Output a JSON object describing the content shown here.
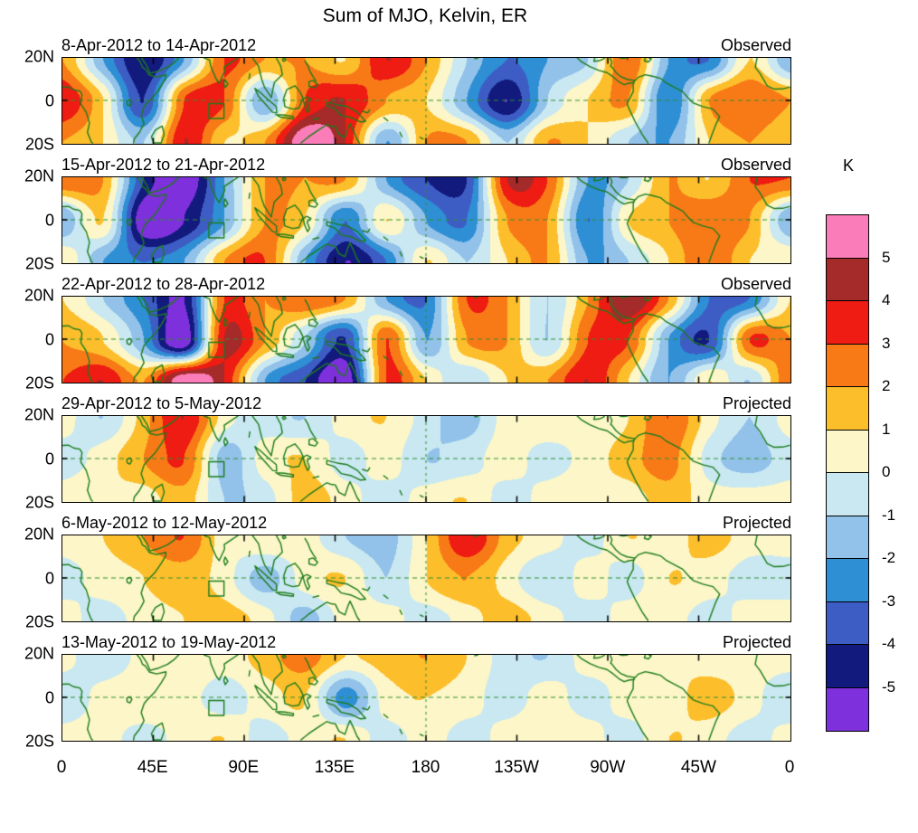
{
  "title": "Sum of MJO, Kelvin, ER",
  "axes": {
    "lat_labels": [
      "20N",
      "0",
      "20S"
    ],
    "lon_labels": [
      "0",
      "45E",
      "90E",
      "135E",
      "180",
      "135W",
      "90W",
      "45W",
      "0"
    ],
    "lon_range": [
      0,
      360
    ],
    "lat_range": [
      -20,
      20
    ]
  },
  "colorbar": {
    "unit": "K",
    "tick_labels": [
      "5",
      "4",
      "3",
      "2",
      "1",
      "0",
      "-1",
      "-2",
      "-3",
      "-4",
      "-5"
    ],
    "colors_top_to_bottom": [
      "#FA7DB9",
      "#A52A2A",
      "#EE1C12",
      "#F87A17",
      "#FDBE2C",
      "#FCF6C8",
      "#C9E8F2",
      "#92C1E9",
      "#2E8FD5",
      "#3D5DC4",
      "#131A7E",
      "#7D30DC"
    ]
  },
  "map": {
    "coastline_color": "#1c7c1c",
    "gridline_color": "#2f8f2f",
    "dashed_equator": 0,
    "dashed_meridian": 180,
    "marker_box": {
      "lon": [
        72.5,
        80
      ],
      "lat": [
        -8.5,
        -1.5
      ]
    },
    "coastlines": [
      [
        0,
        6.2,
        3,
        6.3,
        5.5,
        5,
        8.6,
        4.4,
        9.7,
        2.8,
        9.1,
        -1.6,
        11.8,
        -5.6,
        13.4,
        -10.6,
        12.4,
        -15,
        14.3,
        -19.6,
        14.9,
        -20
      ],
      [
        343.9,
        20,
        343,
        15.6,
        345.4,
        12.6,
        348.9,
        6.9,
        352.4,
        5.3,
        356.6,
        5.4,
        360,
        6.2
      ],
      [
        37,
        20,
        38.6,
        18.1,
        39.6,
        15.6,
        41.1,
        14.7,
        43.1,
        11.9,
        46.6,
        11,
        51.3,
        12,
        51.1,
        10.4,
        49,
        7,
        46,
        2.8,
        41.6,
        -1.6,
        40.4,
        -3.1,
        39,
        -7.1,
        40.4,
        -11,
        38.1,
        -15.1,
        35.6,
        -18.1,
        35.2,
        -20
      ],
      [
        39.2,
        20,
        41.9,
        16.1,
        43.4,
        12.7,
        47.1,
        13.6,
        52.1,
        15.6,
        55.1,
        17.6,
        57.6,
        20
      ],
      [
        49.4,
        -12.1,
        50.4,
        -15.9,
        48.9,
        -20,
        45.1,
        -20,
        44.1,
        -17.1,
        46.1,
        -13.9,
        49.4,
        -12.1
      ],
      [
        70.1,
        20,
        72.9,
        19,
        73.6,
        15.6,
        76.1,
        10.1,
        77.6,
        8.1,
        80.3,
        13.6,
        80.1,
        15.7,
        82.3,
        17.1,
        86.9,
        20
      ],
      [
        80.6,
        9.8,
        81.9,
        7.6,
        80.6,
        6,
        79.9,
        8,
        80.6,
        9.8
      ],
      [
        94.1,
        20,
        97.1,
        16.1,
        98.6,
        10.1,
        100.1,
        6.1,
        103.4,
        1.4
      ],
      [
        103.4,
        1.4,
        104.9,
        8.4,
        108.9,
        12.1,
        108.1,
        16.1,
        105.9,
        20
      ],
      [
        95.3,
        5.6,
        98.1,
        3.6,
        102.1,
        0.1,
        105.9,
        -2.9,
        106.1,
        -5.9,
        104.1,
        -5.6,
        100.9,
        -2.1,
        97.1,
        1.9,
        95.3,
        5.6
      ],
      [
        105.6,
        -6.7,
        110.1,
        -6.9,
        114.4,
        -7.6,
        114.3,
        -8.6,
        108.1,
        -7.9,
        105.6,
        -6.7
      ],
      [
        109.6,
        1.1,
        110.1,
        -2.9,
        114.1,
        -4.1,
        117.1,
        -3.6,
        119.1,
        1.1,
        117.6,
        4.1,
        115.1,
        6.9,
        111.1,
        5.1,
        109.6,
        1.1
      ],
      [
        119.1,
        0.6,
        120.1,
        -2.9,
        121.4,
        -5.6,
        122.4,
        -4.1,
        121.1,
        -1.1,
        123.1,
        0.6,
        120.9,
        1.6,
        119.1,
        0.6
      ],
      [
        130.9,
        -0.9,
        136.1,
        -2.1,
        141.1,
        -2.9,
        146.1,
        -5.6,
        150.1,
        -9.9,
        147.4,
        -10.1,
        143.1,
        -8.1,
        138.1,
        -7.1,
        134.9,
        -3.9,
        130.9,
        -2.6,
        130.9,
        -0.9
      ],
      [
        120.1,
        18.6,
        121.6,
        16.1,
        122.6,
        13.6,
        124.1,
        11.1,
        125.6,
        9.1
      ],
      [
        122.1,
        8.9,
        124.1,
        9.4,
        126.4,
        7.4,
        125.1,
        5.9,
        122.1,
        6.6,
        122.1,
        8.9
      ],
      [
        118.1,
        -20,
        121.9,
        -17.1,
        126.9,
        -13.9,
        130.9,
        -11.4,
        132.9,
        -12.1,
        135.1,
        -12.4,
        136.9,
        -15.9,
        139.9,
        -17.4,
        141.4,
        -13.1,
        142.4,
        -10.9,
        144.1,
        -14.4,
        145.9,
        -18.4,
        147.1,
        -20
      ],
      [
        289.9,
        -20,
        287.1,
        -16.1,
        283.6,
        -10.1,
        280.6,
        -4.1,
        279.6,
        -1.6,
        280.9,
        1.1,
        282.6,
        4.1,
        282.6,
        7.6,
        283.1,
        8.9
      ],
      [
        320.1,
        -20,
        321.6,
        -16.1,
        323.6,
        -11.1,
        325.4,
        -7.6,
        322.1,
        -4.1,
        317.1,
        -2.9,
        312.1,
        -1.1,
        309.6,
        1.4,
        307.1,
        4.1,
        303.1,
        6.1,
        299.1,
        8.1,
        296.1,
        10.4,
        292.1,
        11.4,
        288.6,
        12.1,
        285.1,
        10.9,
        283.1,
        8.9
      ],
      [
        254.9,
        20,
        257.1,
        18.1,
        261.1,
        15.9,
        265.6,
        14.1,
        269.6,
        13.1,
        272.6,
        11.1,
        275.6,
        8.7,
        278.1,
        7.4,
        280.4,
        8.1,
        282.9,
        8.4
      ],
      [
        283.1,
        9.4,
        279.6,
        9.9,
        276.6,
        11.1,
        274.1,
        13.1,
        272.1,
        15.6,
        271.4,
        16.1,
        272.1,
        17.9,
        271.1,
        20
      ],
      [
        263.6,
        20,
        263.1,
        18.4,
        265.6,
        18.6,
        267.7,
        19.4,
        268.4,
        20
      ],
      [
        288.6,
        20,
        288.1,
        18.6,
        290.1,
        18.1,
        291.6,
        19.6,
        290.3,
        20
      ],
      [
        275.9,
        20,
        277.6,
        19.8,
        279.9,
        20
      ],
      [
        31.9,
        -0.4,
        33.4,
        0.3,
        34.4,
        -0.9,
        33.4,
        -2.6,
        32.1,
        -2.1,
        31.9,
        -0.4
      ],
      [
        159.1,
        -8.1,
        161.1,
        -9.6
      ],
      [
        167.1,
        -15.1,
        168.1,
        -17.1
      ],
      [
        177.1,
        -17.4,
        178.6,
        -18.1
      ],
      [
        108.9,
        19.4,
        110.1,
        19.9,
        110.6,
        18.9,
        109.4,
        18.4,
        108.9,
        19.4
      ],
      [
        92.8,
        12.6,
        92.4,
        10.1
      ],
      [
        148.6,
        -5.1,
        151.1,
        -5.9,
        152.1,
        -4.4
      ],
      [
        124.1,
        -9.1,
        126.9,
        -8.4
      ],
      [
        204.1,
        19.6,
        205.6,
        19.9
      ]
    ]
  },
  "chart_data": {
    "type": "heatmap",
    "title": "Sum of MJO, Kelvin, ER",
    "units": "K",
    "levels": [
      -5,
      -4,
      -3,
      -2,
      -1,
      0,
      1,
      2,
      3,
      4,
      5
    ],
    "grid": {
      "lon_start": 0,
      "lon_step": 20,
      "lon_count": 19,
      "lat_rows": [
        20,
        0,
        -20
      ]
    },
    "panels": [
      {
        "date_range": "8-Apr-2012 to 14-Apr-2012",
        "status": "Observed",
        "values": {
          "n": [
            2,
            -2,
            -5,
            -2,
            3,
            2,
            2,
            1,
            4,
            2,
            -1,
            -3,
            -2,
            -1,
            3,
            -2,
            -3,
            1,
            -2
          ],
          "e": [
            4,
            1,
            -4,
            3,
            3,
            -2,
            3,
            4,
            2,
            1,
            -2,
            -5,
            -1,
            1,
            2,
            -3,
            2,
            3,
            2
          ],
          "s": [
            2,
            1,
            -1,
            4,
            1,
            2,
            6,
            4,
            -2,
            2,
            2,
            -1,
            2,
            1,
            -1,
            -2,
            1,
            2,
            1
          ]
        }
      },
      {
        "date_range": "15-Apr-2012 to 21-Apr-2012",
        "status": "Observed",
        "values": {
          "n": [
            3,
            2,
            -4,
            -6,
            -2,
            2,
            2,
            2,
            -2,
            -4,
            -4,
            4,
            3,
            -2,
            -1,
            2,
            1,
            3,
            3
          ],
          "e": [
            -2,
            1,
            -6,
            -5,
            -2,
            2,
            1,
            -3,
            1,
            -2,
            -3,
            2,
            2,
            -3,
            1,
            2,
            3,
            2,
            -2
          ],
          "s": [
            1,
            -2,
            -3,
            -2,
            2,
            3,
            -2,
            -5,
            -3,
            1,
            -1,
            1,
            2,
            -2,
            -1,
            1,
            3,
            1,
            1
          ]
        }
      },
      {
        "date_range": "22-Apr-2012 to 28-Apr-2012",
        "status": "Observed",
        "values": {
          "n": [
            1,
            -1,
            -3,
            -5,
            3,
            2,
            3,
            2,
            -2,
            -3,
            3,
            2,
            -1,
            2,
            5,
            2,
            -3,
            -3,
            1
          ],
          "e": [
            2,
            1,
            -2,
            -6,
            4,
            2,
            -1,
            -4,
            3,
            -2,
            2,
            2,
            -1,
            3,
            3,
            -2,
            -4,
            3,
            2
          ],
          "s": [
            3,
            4,
            2,
            6,
            4,
            -2,
            -4,
            -6,
            3,
            1,
            -1,
            1,
            2,
            4,
            1,
            -2,
            1,
            -1,
            3
          ]
        }
      },
      {
        "date_range": "29-Apr-2012 to 5-May-2012",
        "status": "Projected",
        "values": {
          "n": [
            0.5,
            -1,
            1.5,
            4,
            0.5,
            -0.5,
            -1,
            0.5,
            1,
            -0.5,
            -1.5,
            0.5,
            1,
            0.5,
            1,
            3,
            0.5,
            -1,
            0.5
          ],
          "e": [
            -0.5,
            0.5,
            2,
            3,
            -1.5,
            0.5,
            1,
            -0.5,
            0.5,
            -1,
            -0.5,
            0.5,
            -0.5,
            0.5,
            1.5,
            2.5,
            -0.5,
            -1.5,
            -0.5
          ],
          "s": [
            0.5,
            1,
            0.5,
            1.5,
            -1,
            -0.5,
            1.5,
            0.5,
            -0.5,
            0.5,
            1,
            -0.5,
            0.5,
            1,
            0.5,
            1.5,
            0.5,
            0.5,
            0.5
          ]
        }
      },
      {
        "date_range": "6-May-2012 to 12-May-2012",
        "status": "Projected",
        "values": {
          "n": [
            0.5,
            1,
            2,
            3,
            0.5,
            1,
            0.5,
            -1,
            -1.5,
            1,
            4,
            1.5,
            0.5,
            -0.5,
            1,
            0.5,
            1.5,
            0.5,
            0.5
          ],
          "e": [
            -0.5,
            0.5,
            1,
            1.5,
            0.5,
            -1.5,
            0.5,
            1,
            -1,
            1,
            2,
            0.5,
            -1,
            0.5,
            -0.5,
            1,
            0.5,
            -0.5,
            -0.5
          ],
          "s": [
            0.5,
            -0.5,
            0.5,
            1,
            1.5,
            0.5,
            -1.5,
            0.5,
            0.5,
            -0.5,
            0.5,
            1.5,
            0.5,
            -0.5,
            0.5,
            0.5,
            -0.5,
            0.5,
            0.5
          ]
        }
      },
      {
        "date_range": "13-May-2012 to 19-May-2012",
        "status": "Projected",
        "values": {
          "n": [
            0.5,
            -1,
            0.5,
            1,
            0.5,
            1.5,
            2.5,
            1,
            1.5,
            2,
            1,
            -0.5,
            -1,
            0.5,
            0.5,
            1,
            0.5,
            0.5,
            0.5
          ],
          "e": [
            -1,
            0.5,
            1,
            0.5,
            -0.5,
            0.5,
            1,
            -2.5,
            0.5,
            1,
            0.5,
            -0.5,
            0.5,
            -0.5,
            0.5,
            0.5,
            1.5,
            0.5,
            -1
          ],
          "s": [
            0.5,
            0.5,
            -0.5,
            0.5,
            1,
            -0.5,
            0.5,
            1,
            -0.5,
            0.5,
            -0.5,
            0.5,
            1,
            0.5,
            -0.5,
            1,
            0.5,
            -0.5,
            0.5
          ]
        }
      }
    ]
  }
}
